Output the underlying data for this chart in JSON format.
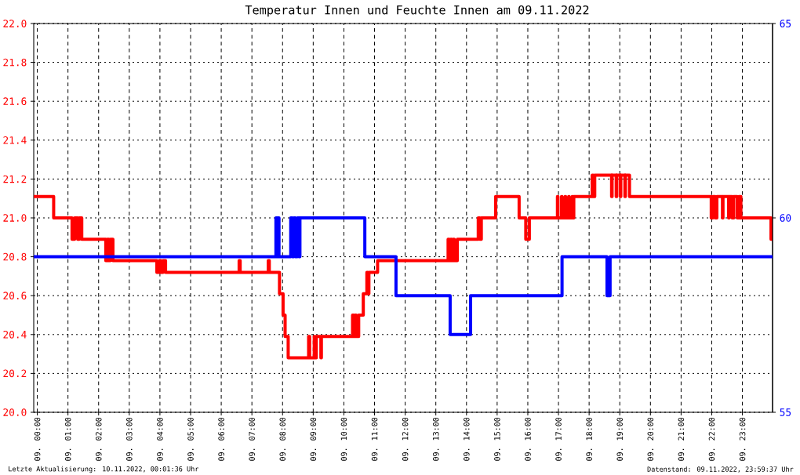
{
  "chart_data": {
    "type": "step",
    "title": "Temperatur Innen und Feuchte Innen am 09.11.2022",
    "series": [
      {
        "color": "#ff0000",
        "x": [
          "2022-11-08T23:53",
          "2022-11-09T00:32",
          "2022-11-09T01:08",
          "2022-11-09T01:13",
          "2022-11-09T01:19",
          "2022-11-09T01:22",
          "2022-11-09T01:27",
          "2022-11-09T02:14",
          "2022-11-09T02:17",
          "2022-11-09T02:20",
          "2022-11-09T02:23",
          "2022-11-09T02:28",
          "2022-11-09T03:54",
          "2022-11-09T03:59",
          "2022-11-09T04:02",
          "2022-11-09T04:06",
          "2022-11-09T04:11",
          "2022-11-09T06:35",
          "2022-11-09T06:37",
          "2022-11-09T07:32",
          "2022-11-09T07:34",
          "2022-11-09T07:54",
          "2022-11-09T08:01",
          "2022-11-09T08:05",
          "2022-11-09T08:11",
          "2022-11-09T08:51",
          "2022-11-09T08:53",
          "2022-11-09T09:02",
          "2022-11-09T09:04",
          "2022-11-09T09:06",
          "2022-11-09T09:15",
          "2022-11-09T09:16",
          "2022-11-09T10:17",
          "2022-11-09T10:19",
          "2022-11-09T10:22",
          "2022-11-09T10:24",
          "2022-11-09T10:29",
          "2022-11-09T10:38",
          "2022-11-09T10:45",
          "2022-11-09T10:47",
          "2022-11-09T10:49",
          "2022-11-09T11:06",
          "2022-11-09T13:24",
          "2022-11-09T13:26",
          "2022-11-09T13:29",
          "2022-11-09T13:31",
          "2022-11-09T13:34",
          "2022-11-09T13:36",
          "2022-11-09T13:42",
          "2022-11-09T14:23",
          "2022-11-09T14:26",
          "2022-11-09T14:29",
          "2022-11-09T14:57",
          "2022-11-09T15:43",
          "2022-11-09T15:56",
          "2022-11-09T16:03",
          "2022-11-09T16:58",
          "2022-11-09T16:59",
          "2022-11-09T17:06",
          "2022-11-09T17:07",
          "2022-11-09T17:13",
          "2022-11-09T17:14",
          "2022-11-09T17:20",
          "2022-11-09T17:21",
          "2022-11-09T17:27",
          "2022-11-09T17:28",
          "2022-11-09T17:30",
          "2022-11-09T18:06",
          "2022-11-09T18:08",
          "2022-11-09T18:11",
          "2022-11-09T18:44",
          "2022-11-09T18:45",
          "2022-11-09T18:53",
          "2022-11-09T18:54",
          "2022-11-09T19:01",
          "2022-11-09T19:02",
          "2022-11-09T19:10",
          "2022-11-09T19:11",
          "2022-11-09T19:19",
          "2022-11-09T21:59",
          "2022-11-09T22:02",
          "2022-11-09T22:07",
          "2022-11-09T22:10",
          "2022-11-09T22:21",
          "2022-11-09T22:22",
          "2022-11-09T22:33",
          "2022-11-09T22:34",
          "2022-11-09T22:40",
          "2022-11-09T22:43",
          "2022-11-09T22:50",
          "2022-11-09T22:53",
          "2022-11-09T22:57",
          "2022-11-09T23:56",
          "2022-11-09T23:59"
        ],
        "values": [
          21.11,
          21.0,
          20.89,
          21.0,
          20.89,
          21.0,
          20.89,
          20.78,
          20.89,
          20.78,
          20.89,
          20.78,
          20.72,
          20.78,
          20.72,
          20.78,
          20.72,
          20.78,
          20.72,
          20.78,
          20.72,
          20.61,
          20.5,
          20.39,
          20.28,
          20.39,
          20.28,
          20.39,
          20.28,
          20.39,
          20.28,
          20.39,
          20.5,
          20.39,
          20.5,
          20.39,
          20.5,
          20.61,
          20.72,
          20.61,
          20.72,
          20.78,
          20.89,
          20.78,
          20.89,
          20.78,
          20.89,
          20.78,
          20.89,
          21.0,
          20.89,
          21.0,
          21.11,
          21.0,
          20.89,
          21.0,
          21.11,
          21.0,
          21.11,
          21.0,
          21.11,
          21.0,
          21.11,
          21.0,
          21.11,
          21.0,
          21.11,
          21.22,
          21.11,
          21.22,
          21.11,
          21.22,
          21.11,
          21.22,
          21.11,
          21.22,
          21.11,
          21.22,
          21.11,
          21.0,
          21.11,
          21.0,
          21.11,
          21.0,
          21.11,
          21.0,
          21.11,
          21.0,
          21.11,
          21.0,
          21.11,
          21.0,
          20.89,
          20.89
        ]
      },
      {
        "color": "#0000ff",
        "axis": "y2",
        "x": [
          "2022-11-08T23:53",
          "2022-11-09T07:47",
          "2022-11-09T07:49",
          "2022-11-09T07:51",
          "2022-11-09T07:53",
          "2022-11-09T08:16",
          "2022-11-09T08:19",
          "2022-11-09T08:22",
          "2022-11-09T08:25",
          "2022-11-09T08:29",
          "2022-11-09T08:32",
          "2022-11-09T08:34",
          "2022-11-09T10:41",
          "2022-11-09T11:42",
          "2022-11-09T13:28",
          "2022-11-09T14:08",
          "2022-11-09T17:07",
          "2022-11-09T18:35",
          "2022-11-09T18:41",
          "2022-11-09T23:59"
        ],
        "values": [
          59,
          60,
          59,
          60,
          59,
          60,
          59,
          60,
          59,
          60,
          59,
          60,
          59,
          58,
          57,
          58,
          59,
          58,
          59,
          59
        ]
      }
    ],
    "xlim": [
      "2022-11-08T23:53",
      "2022-11-09T23:59"
    ],
    "xticks": [
      {
        "value": "2022-11-09T00:00",
        "label": "09. 00:00"
      },
      {
        "value": "2022-11-09T01:00",
        "label": "09. 01:00"
      },
      {
        "value": "2022-11-09T02:00",
        "label": "09. 02:00"
      },
      {
        "value": "2022-11-09T03:00",
        "label": "09. 03:00"
      },
      {
        "value": "2022-11-09T04:00",
        "label": "09. 04:00"
      },
      {
        "value": "2022-11-09T05:00",
        "label": "09. 05:00"
      },
      {
        "value": "2022-11-09T06:00",
        "label": "09. 06:00"
      },
      {
        "value": "2022-11-09T07:00",
        "label": "09. 07:00"
      },
      {
        "value": "2022-11-09T08:00",
        "label": "09. 08:00"
      },
      {
        "value": "2022-11-09T09:00",
        "label": "09. 09:00"
      },
      {
        "value": "2022-11-09T10:00",
        "label": "09. 10:00"
      },
      {
        "value": "2022-11-09T11:00",
        "label": "09. 11:00"
      },
      {
        "value": "2022-11-09T12:00",
        "label": "09. 12:00"
      },
      {
        "value": "2022-11-09T13:00",
        "label": "09. 13:00"
      },
      {
        "value": "2022-11-09T14:00",
        "label": "09. 14:00"
      },
      {
        "value": "2022-11-09T15:00",
        "label": "09. 15:00"
      },
      {
        "value": "2022-11-09T16:00",
        "label": "09. 16:00"
      },
      {
        "value": "2022-11-09T17:00",
        "label": "09. 17:00"
      },
      {
        "value": "2022-11-09T18:00",
        "label": "09. 18:00"
      },
      {
        "value": "2022-11-09T19:00",
        "label": "09. 19:00"
      },
      {
        "value": "2022-11-09T20:00",
        "label": "09. 20:00"
      },
      {
        "value": "2022-11-09T21:00",
        "label": "09. 21:00"
      },
      {
        "value": "2022-11-09T22:00",
        "label": "09. 22:00"
      },
      {
        "value": "2022-11-09T23:00",
        "label": "09. 23:00"
      }
    ],
    "ylim": [
      20,
      22
    ],
    "yticks": [
      {
        "value": 20,
        "label": "20.0"
      },
      20.2,
      20.4,
      20.6,
      20.8,
      {
        "value": 21,
        "label": "21.0"
      },
      21.2,
      21.4,
      21.6,
      21.8,
      {
        "value": 22,
        "label": "22.0"
      }
    ],
    "y2lim": [
      55,
      65
    ],
    "y2ticks": [
      55,
      60,
      65
    ],
    "grid": true,
    "annotations": [
      "Letzte Aktualisierung: 10.11.2022, 00:01:36 Uhr",
      "Datenstand: 09.11.2022, 23:59:37 Uhr"
    ]
  }
}
